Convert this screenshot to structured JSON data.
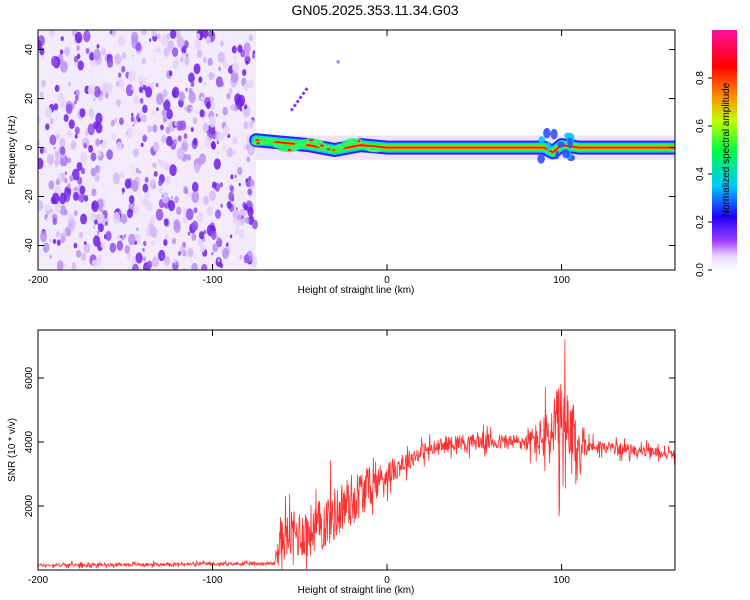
{
  "title": "GN05.2025.353.11.34.G03",
  "colorbar": {
    "label": "Normalized spectral amplitude",
    "ticks": [
      "0.0",
      "0.2",
      "0.4",
      "0.6",
      "0.8"
    ],
    "tick_values": [
      0.0,
      0.2,
      0.4,
      0.6,
      0.8
    ],
    "range": [
      0,
      1
    ],
    "colors": [
      "#ffffff",
      "#e0c8f8",
      "#8000ff",
      "#0000ff",
      "#00c8ff",
      "#00ff80",
      "#c8ff00",
      "#ff8000",
      "#ff0000",
      "#ff00a0"
    ]
  },
  "chart_data": [
    {
      "type": "heatmap",
      "title": "",
      "xlabel": "Height of straight line (km)",
      "ylabel": "Frequency (Hz)",
      "xlim": [
        -200,
        165
      ],
      "ylim": [
        -50,
        48
      ],
      "xticks": [
        -200,
        -100,
        0,
        100
      ],
      "xtick_labels": [
        "-200",
        "-100",
        "0",
        "100"
      ],
      "yticks": [
        -40,
        -20,
        0,
        20,
        40
      ],
      "ytick_labels": [
        "-40",
        "-20",
        "0",
        "20",
        "40"
      ],
      "noise_region": {
        "x_range": [
          -200,
          -75
        ],
        "y_range": [
          -50,
          48
        ],
        "amplitude": 0.2
      },
      "signal_track": [
        {
          "x": -75,
          "y": 3
        },
        {
          "x": -60,
          "y": 2
        },
        {
          "x": -45,
          "y": 1
        },
        {
          "x": -30,
          "y": -1
        },
        {
          "x": -15,
          "y": 1
        },
        {
          "x": 0,
          "y": 0
        },
        {
          "x": 50,
          "y": 0
        },
        {
          "x": 90,
          "y": 0
        },
        {
          "x": 95,
          "y": -2
        },
        {
          "x": 100,
          "y": 1
        },
        {
          "x": 110,
          "y": 0
        },
        {
          "x": 165,
          "y": 0
        }
      ],
      "signal_amplitude": 0.95,
      "streak": {
        "x": [
          -55,
          -45
        ],
        "y": [
          15,
          25
        ]
      }
    },
    {
      "type": "line",
      "title": "",
      "xlabel": "Height of straight line (km)",
      "ylabel": "SNR (10 * v/v)",
      "xlim": [
        -200,
        165
      ],
      "ylim": [
        0,
        7500
      ],
      "xticks": [
        -200,
        -100,
        0,
        100
      ],
      "xtick_labels": [
        "-200",
        "-100",
        "0",
        "100"
      ],
      "yticks": [
        2000,
        4000,
        6000
      ],
      "ytick_labels": [
        "2000",
        "4000",
        "6000"
      ],
      "color": "#ff3030",
      "series": [
        {
          "name": "SNR",
          "segments": [
            {
              "x": -200,
              "y": 150,
              "spread": 100
            },
            {
              "x": -65,
              "y": 200,
              "spread": 100
            },
            {
              "x": -60,
              "y": 1000,
              "spread": 1400
            },
            {
              "x": -40,
              "y": 1300,
              "spread": 1700
            },
            {
              "x": -20,
              "y": 2200,
              "spread": 1700
            },
            {
              "x": 0,
              "y": 3000,
              "spread": 800
            },
            {
              "x": 20,
              "y": 3700,
              "spread": 500
            },
            {
              "x": 40,
              "y": 4000,
              "spread": 500
            },
            {
              "x": 80,
              "y": 4000,
              "spread": 500
            },
            {
              "x": 95,
              "y": 4200,
              "spread": 2000
            },
            {
              "x": 100,
              "y": 4200,
              "spread": 3500
            },
            {
              "x": 108,
              "y": 3800,
              "spread": 2500
            },
            {
              "x": 115,
              "y": 3900,
              "spread": 400
            },
            {
              "x": 165,
              "y": 3600,
              "spread": 300
            }
          ]
        }
      ]
    }
  ]
}
